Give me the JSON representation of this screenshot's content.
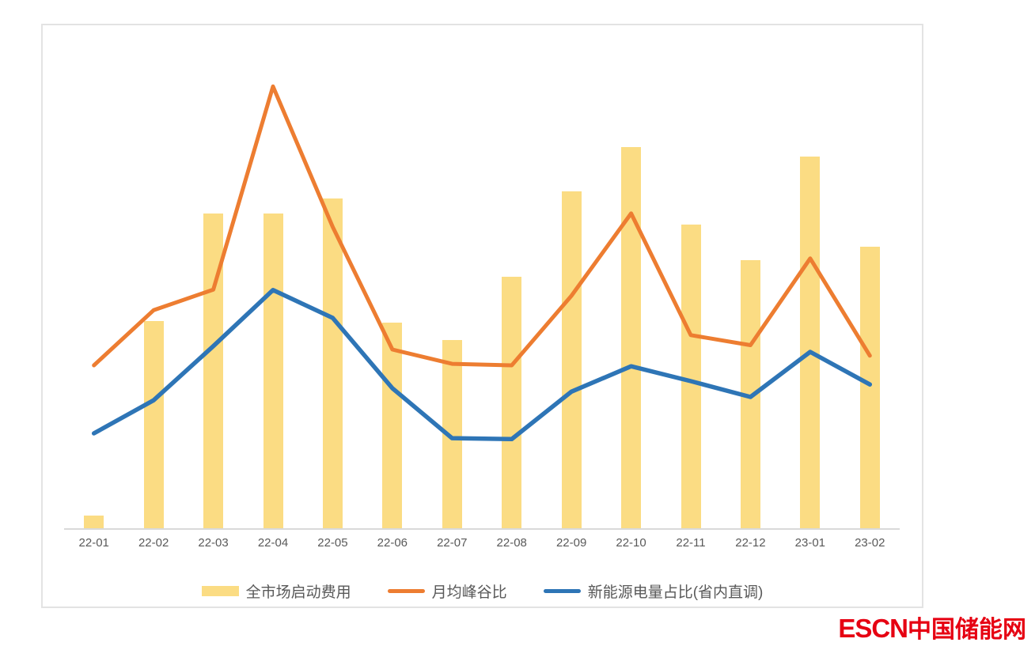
{
  "colors": {
    "bar_fill": "#FBDC83",
    "orange_line": "#ED7D31",
    "blue_line": "#2E75B6",
    "axis_line": "#D9D9D9",
    "label_text": "#595959",
    "card_border": "#E3E3E3",
    "watermark_red": "#E60012"
  },
  "legend": [
    {
      "label": "全市场启动费用",
      "type": "bar",
      "color": "#FBDC83"
    },
    {
      "label": "月均峰谷比",
      "type": "line",
      "color": "#ED7D31"
    },
    {
      "label": "新能源电量占比(省内直调)",
      "type": "line",
      "color": "#2E75B6"
    }
  ],
  "watermark": {
    "text_en": "ESCN",
    "text_zh": "中国储能网"
  },
  "chart_data": {
    "type": "combo (bar + 2 lines)",
    "title": "",
    "xlabel": "",
    "ylabel": "",
    "value_note": "no y-axis ticks or data labels are shown in the image; values are relative heights in % of the plot height",
    "ylim": [
      0,
      100
    ],
    "grid": false,
    "legend_position": "bottom",
    "categories": [
      "22-01",
      "22-02",
      "22-03",
      "22-04",
      "22-05",
      "22-06",
      "22-07",
      "22-08",
      "22-09",
      "22-10",
      "22-11",
      "22-12",
      "23-01",
      "23-02"
    ],
    "series": [
      {
        "name": "全市场启动费用",
        "type": "bar",
        "color": "#FBDC83",
        "values": [
          2.6,
          43.2,
          65.7,
          65.7,
          68.8,
          42.9,
          39.3,
          52.5,
          70.3,
          79.5,
          63.4,
          55.9,
          77.6,
          58.7
        ]
      },
      {
        "name": "月均峰谷比",
        "type": "line",
        "color": "#ED7D31",
        "values": [
          34.0,
          45.5,
          49.8,
          92.2,
          62.9,
          37.3,
          34.3,
          34.0,
          48.5,
          65.7,
          40.3,
          38.2,
          56.3,
          36.0
        ]
      },
      {
        "name": "新能源电量占比(省内直调)",
        "type": "line",
        "color": "#2E75B6",
        "values": [
          19.8,
          26.7,
          38.0,
          49.7,
          43.9,
          29.2,
          18.8,
          18.6,
          28.5,
          33.8,
          30.7,
          27.4,
          36.8,
          30.0
        ]
      }
    ]
  }
}
